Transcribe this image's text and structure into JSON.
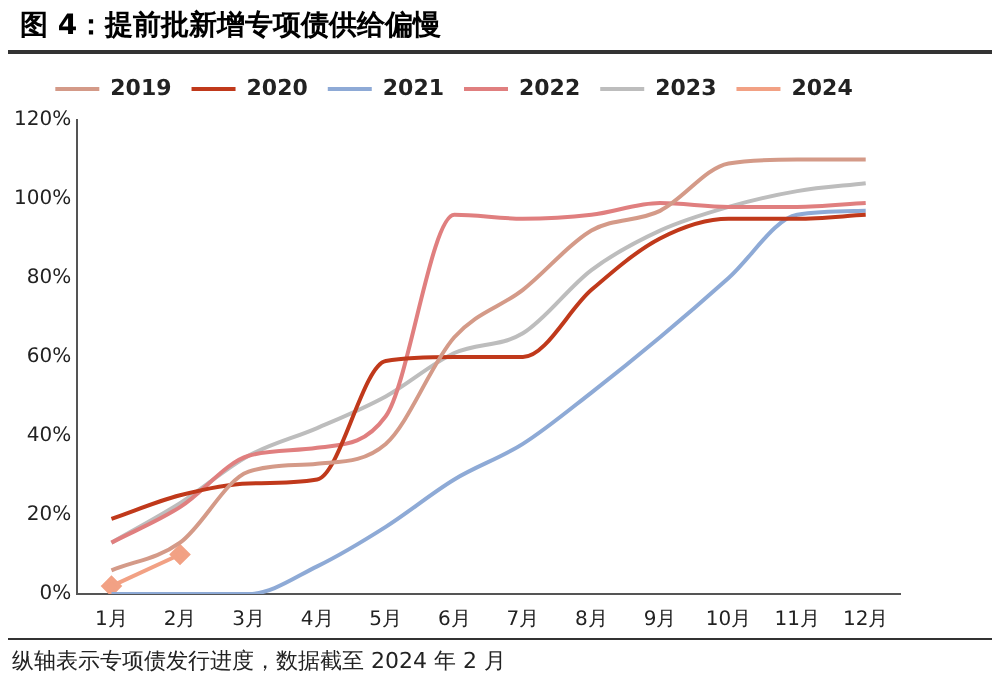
{
  "chart_data": {
    "type": "line",
    "title": "图 4：提前批新增专项债供给偏慢",
    "categories": [
      "1月",
      "2月",
      "3月",
      "4月",
      "5月",
      "6月",
      "7月",
      "8月",
      "9月",
      "10月",
      "11月",
      "12月"
    ],
    "series": [
      {
        "name": "2019",
        "color": "#d49a88",
        "values": [
          6,
          13,
          31,
          33,
          38,
          65,
          77,
          92,
          97,
          109,
          110,
          110
        ]
      },
      {
        "name": "2020",
        "color": "#c0391b",
        "values": [
          19,
          25,
          28,
          29,
          59,
          60,
          60,
          77,
          90,
          95,
          95,
          96
        ]
      },
      {
        "name": "2021",
        "color": "#8eaad6",
        "values": [
          0,
          0,
          0,
          7,
          17,
          29,
          38,
          51,
          65,
          80,
          96,
          97
        ]
      },
      {
        "name": "2022",
        "color": "#e07f7f",
        "values": [
          13,
          22,
          35,
          37,
          45,
          96,
          95,
          96,
          99,
          98,
          98,
          99
        ]
      },
      {
        "name": "2023",
        "color": "#bdbdbd",
        "values": [
          13,
          23,
          35,
          42,
          50,
          61,
          66,
          82,
          92,
          98,
          102,
          104
        ]
      },
      {
        "name": "2024",
        "color": "#f2a184",
        "marker": "diamond",
        "values": [
          2,
          10,
          null,
          null,
          null,
          null,
          null,
          null,
          null,
          null,
          null,
          null
        ]
      }
    ],
    "ylim": [
      0,
      120
    ],
    "yticks": [
      {
        "value": 0,
        "label": "0%"
      },
      {
        "value": 20,
        "label": "20%"
      },
      {
        "value": 40,
        "label": "40%"
      },
      {
        "value": 60,
        "label": "60%"
      },
      {
        "value": 80,
        "label": "80%"
      },
      {
        "value": 100,
        "label": "100%"
      },
      {
        "value": 120,
        "label": "120%"
      }
    ],
    "grid": false,
    "legend": "top",
    "marker": "none",
    "annotations": [
      "纵轴表示专项债发行进度，数据截至 2024 年 2 月"
    ]
  }
}
